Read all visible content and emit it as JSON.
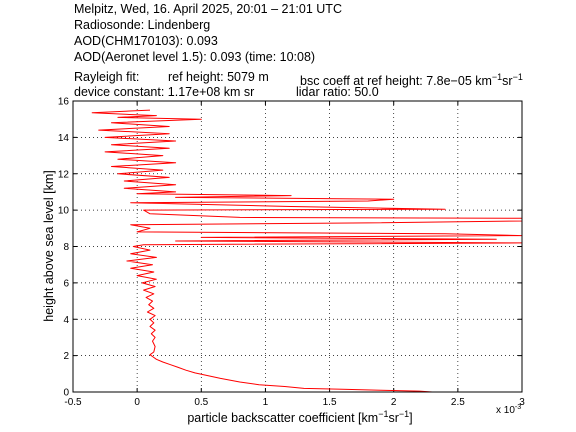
{
  "header": {
    "line1": "Melpitz, Wed, 16. April 2025, 20:01 – 21:01 UTC",
    "line2": "Radiosonde: Lindenberg",
    "line3": "AOD(CHM170103): 0.093",
    "line4": "AOD(Aeronet level 1.5): 0.093   (time: 10:08)",
    "rayleigh_label": "Rayleigh fit:",
    "ref_height": "ref height: 5079 m",
    "bsc_coeff_prefix": "bsc coeff at ref height: 7.8e−05 km",
    "bsc_coeff_exp1": "−1",
    "bsc_coeff_sr": "sr",
    "bsc_coeff_exp2": "−1",
    "device_constant": "device constant: 1.17e+08 km sr",
    "lidar_ratio": "lidar ratio: 50.0"
  },
  "chart_data": {
    "type": "line",
    "xlabel_prefix": "particle backscatter coefficient [km",
    "xlabel_exp1": "−1",
    "xlabel_mid": "sr",
    "xlabel_exp2": "−1",
    "xlabel_suffix": "]",
    "ylabel": "height above sea level [km]",
    "x_multiplier": "x 10",
    "x_multiplier_exp": "-3",
    "xlim": [
      -0.5,
      3
    ],
    "ylim": [
      0,
      16
    ],
    "xticks": [
      "-0.5",
      "0",
      "0.5",
      "1",
      "1.5",
      "2",
      "2.5",
      "3"
    ],
    "yticks": [
      "0",
      "2",
      "4",
      "6",
      "8",
      "10",
      "12",
      "14",
      "16"
    ],
    "grid": true,
    "line_color": "#ff0000",
    "series": [
      {
        "x_units": "1e-3 km^-1 sr^-1",
        "points": [
          [
            2.3,
            0.0
          ],
          [
            2.2,
            0.05
          ],
          [
            1.9,
            0.1
          ],
          [
            1.6,
            0.15
          ],
          [
            1.3,
            0.2
          ],
          [
            1.15,
            0.3
          ],
          [
            0.95,
            0.4
          ],
          [
            0.8,
            0.55
          ],
          [
            0.65,
            0.75
          ],
          [
            0.55,
            0.9
          ],
          [
            0.45,
            1.05
          ],
          [
            0.38,
            1.2
          ],
          [
            0.32,
            1.35
          ],
          [
            0.26,
            1.5
          ],
          [
            0.2,
            1.65
          ],
          [
            0.15,
            1.8
          ],
          [
            0.12,
            1.95
          ],
          [
            0.1,
            2.05
          ],
          [
            0.13,
            2.2
          ],
          [
            0.14,
            2.5
          ],
          [
            0.12,
            2.8
          ],
          [
            0.14,
            3.0
          ],
          [
            0.11,
            3.2
          ],
          [
            0.14,
            3.4
          ],
          [
            0.1,
            3.6
          ],
          [
            0.13,
            3.8
          ],
          [
            0.1,
            4.0
          ],
          [
            0.14,
            4.2
          ],
          [
            0.08,
            4.4
          ],
          [
            0.13,
            4.6
          ],
          [
            0.09,
            4.8
          ],
          [
            0.12,
            5.0
          ],
          [
            0.07,
            5.2
          ],
          [
            0.13,
            5.4
          ],
          [
            0.05,
            5.6
          ],
          [
            0.14,
            5.8
          ],
          [
            0.04,
            6.0
          ],
          [
            0.15,
            6.2
          ],
          [
            0.0,
            6.4
          ],
          [
            0.13,
            6.6
          ],
          [
            -0.05,
            6.8
          ],
          [
            0.12,
            7.0
          ],
          [
            -0.08,
            7.2
          ],
          [
            0.15,
            7.4
          ],
          [
            -0.05,
            7.6
          ],
          [
            0.1,
            7.8
          ],
          [
            -0.03,
            8.0
          ],
          [
            0.05,
            8.1
          ],
          [
            3.0,
            8.2
          ],
          [
            0.3,
            8.3
          ],
          [
            2.8,
            8.4
          ],
          [
            0.5,
            8.5
          ],
          [
            3.0,
            8.6
          ],
          [
            2.4,
            8.7
          ],
          [
            0.0,
            8.8
          ],
          [
            0.1,
            9.0
          ],
          [
            -0.05,
            9.2
          ],
          [
            1.8,
            9.3
          ],
          [
            3.0,
            9.4
          ],
          [
            3.0,
            9.55
          ],
          [
            0.8,
            9.6
          ],
          [
            0.1,
            9.8
          ],
          [
            0.05,
            10.0
          ],
          [
            2.4,
            10.05
          ],
          [
            1.2,
            10.2
          ],
          [
            -0.05,
            10.4
          ],
          [
            1.8,
            10.5
          ],
          [
            2.0,
            10.6
          ],
          [
            0.3,
            10.7
          ],
          [
            1.2,
            10.8
          ],
          [
            0.0,
            10.9
          ],
          [
            0.3,
            11.0
          ],
          [
            -0.1,
            11.2
          ],
          [
            0.3,
            11.4
          ],
          [
            -0.1,
            11.6
          ],
          [
            0.25,
            11.8
          ],
          [
            -0.15,
            12.0
          ],
          [
            0.2,
            12.2
          ],
          [
            -0.2,
            12.4
          ],
          [
            0.3,
            12.6
          ],
          [
            -0.15,
            12.8
          ],
          [
            0.2,
            13.0
          ],
          [
            -0.25,
            13.2
          ],
          [
            0.25,
            13.4
          ],
          [
            -0.2,
            13.6
          ],
          [
            0.3,
            13.8
          ],
          [
            -0.25,
            14.0
          ],
          [
            0.25,
            14.2
          ],
          [
            -0.3,
            14.4
          ],
          [
            0.25,
            14.6
          ],
          [
            -0.2,
            14.8
          ],
          [
            0.5,
            15.0
          ],
          [
            -0.15,
            15.1
          ],
          [
            0.15,
            15.2
          ],
          [
            -0.35,
            15.35
          ],
          [
            0.1,
            15.5
          ]
        ]
      }
    ]
  }
}
